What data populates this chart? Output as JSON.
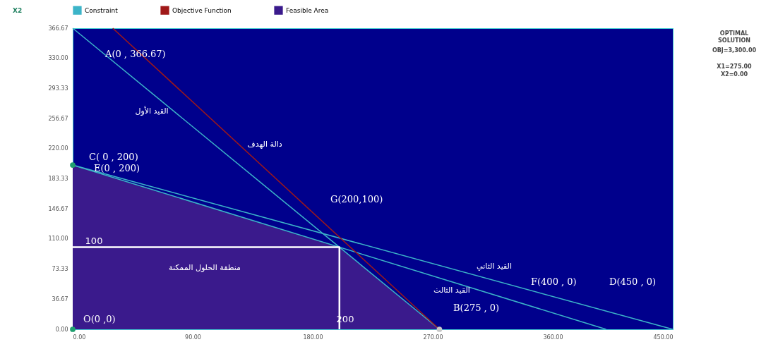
{
  "chart_data": {
    "type": "line",
    "xlim": [
      0,
      450
    ],
    "ylim": [
      0,
      366.67
    ],
    "xticks": [
      {
        "value": 0,
        "label": "0.00"
      },
      {
        "value": 90,
        "label": "90.00"
      },
      {
        "value": 180,
        "label": "180.00"
      },
      {
        "value": 270,
        "label": "270.00"
      },
      {
        "value": 360,
        "label": "360.00"
      },
      {
        "value": 450,
        "label": "450.00"
      }
    ],
    "yticks": [
      {
        "value": 0,
        "label": "0.00"
      },
      {
        "value": 36.67,
        "label": "36.67"
      },
      {
        "value": 73.33,
        "label": "73.33"
      },
      {
        "value": 110,
        "label": "110.00"
      },
      {
        "value": 146.67,
        "label": "146.67"
      },
      {
        "value": 183.33,
        "label": "183.33"
      },
      {
        "value": 220,
        "label": "220.00"
      },
      {
        "value": 256.67,
        "label": "256.67"
      },
      {
        "value": 293.33,
        "label": "293.33"
      },
      {
        "value": 330,
        "label": "330.00"
      },
      {
        "value": 366.67,
        "label": "366.67"
      }
    ],
    "grid": false,
    "legend": "top",
    "series": [
      {
        "name": "Constraint",
        "color": "#3cb4c8",
        "x": [
          0,
          275
        ],
        "values": [
          366.67,
          0
        ]
      },
      {
        "color": "#3cb4c8",
        "x": [
          0,
          450
        ],
        "values": [
          200,
          0
        ]
      },
      {
        "color": "#3cb4c8",
        "x": [
          0,
          400
        ],
        "values": [
          200,
          0
        ]
      },
      {
        "name": "Objective Function",
        "color": "#a01818",
        "x": [
          30,
          275
        ],
        "values": [
          366.67,
          0
        ]
      },
      {
        "type": "area",
        "name": "Feasible Area",
        "color": "#3a1a8c",
        "x": [
          0,
          200,
          275
        ],
        "values": [
          200,
          100,
          0
        ]
      },
      {
        "color": "#ffffff",
        "x": [
          0,
          200,
          200
        ],
        "values": [
          100,
          100,
          0
        ]
      },
      {
        "type": "scatter",
        "color": "#20a070",
        "x": [
          0,
          0
        ],
        "values": [
          0,
          200
        ]
      },
      {
        "type": "scatter",
        "color": "#c8c8c8",
        "x": [
          275
        ],
        "values": [
          0
        ]
      }
    ],
    "annotations": [
      "A(0 , 366.67)",
      "C( 0 , 200)",
      "E(0 , 200)",
      "G(200,100)",
      "B(275 , 0)",
      "F(400 , 0)",
      "D(450 , 0)",
      "O(0 ,0)",
      "X2",
      "100",
      "200",
      "القيد الأول",
      "دالة الهدف",
      "منطقة الحلول الممكنة",
      "القيد الثاني",
      "القيد الثالث",
      "OPTIMAL SOLUTION",
      "OBJ=3,300.00",
      "X1=275.00",
      "X2=0.00"
    ]
  }
}
